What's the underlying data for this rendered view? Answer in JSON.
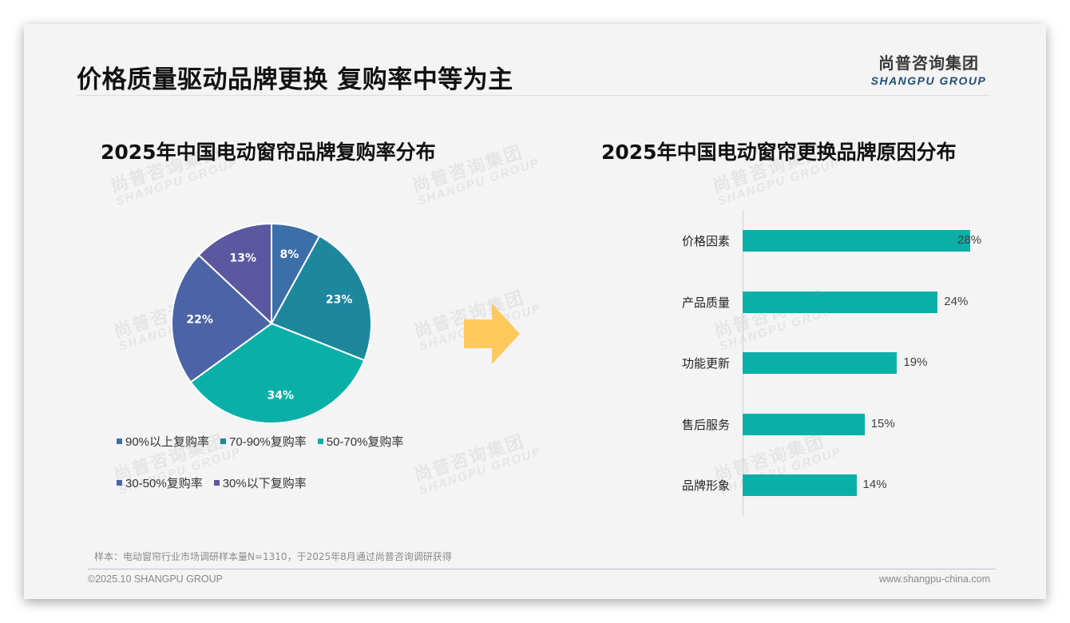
{
  "slide": {
    "title": "价格质量驱动品牌更换 复购率中等为主",
    "logo": {
      "cn": "尚普咨询集团",
      "en": "SHANGPU GROUP"
    },
    "watermark": {
      "cn": "尚普咨询集团",
      "en": "SHANGPU GROUP"
    },
    "note": "样本：电动窗帘行业市场调研样本量N=1310，于2025年8月通过尚普咨询调研获得",
    "footer": {
      "left": "©2025.10 SHANGPU GROUP",
      "right": "www.shangpu-china.com"
    },
    "colors": {
      "arrow": "#FFC95C",
      "bar": "#0AB0A8",
      "title": "#111111"
    }
  },
  "chart_data": [
    {
      "type": "pie",
      "title": "2025年中国电动窗帘品牌复购率分布",
      "categories": [
        "90%以上复购率",
        "70-90%复购率",
        "50-70%复购率",
        "30-50%复购率",
        "30%以下复购率"
      ],
      "values": [
        8,
        23,
        34,
        22,
        13
      ],
      "labels": [
        "8%",
        "23%",
        "34%",
        "22%",
        "13%"
      ],
      "colors": [
        "#3C6FA8",
        "#1D879E",
        "#0AB0A8",
        "#4C64A6",
        "#5B58A0"
      ],
      "start_angle": "top, clockwise",
      "legend_position": "bottom"
    },
    {
      "type": "bar",
      "orientation": "horizontal",
      "title": "2025年中国电动窗帘更换品牌原因分布",
      "categories": [
        "价格因素",
        "产品质量",
        "功能更新",
        "售后服务",
        "品牌形象"
      ],
      "values": [
        28,
        24,
        19,
        15,
        14
      ],
      "labels": [
        "28%",
        "24%",
        "19%",
        "15%",
        "14%"
      ],
      "unit": "%",
      "color": "#0AB0A8",
      "grid": false,
      "xlim": [
        0,
        30
      ]
    }
  ]
}
